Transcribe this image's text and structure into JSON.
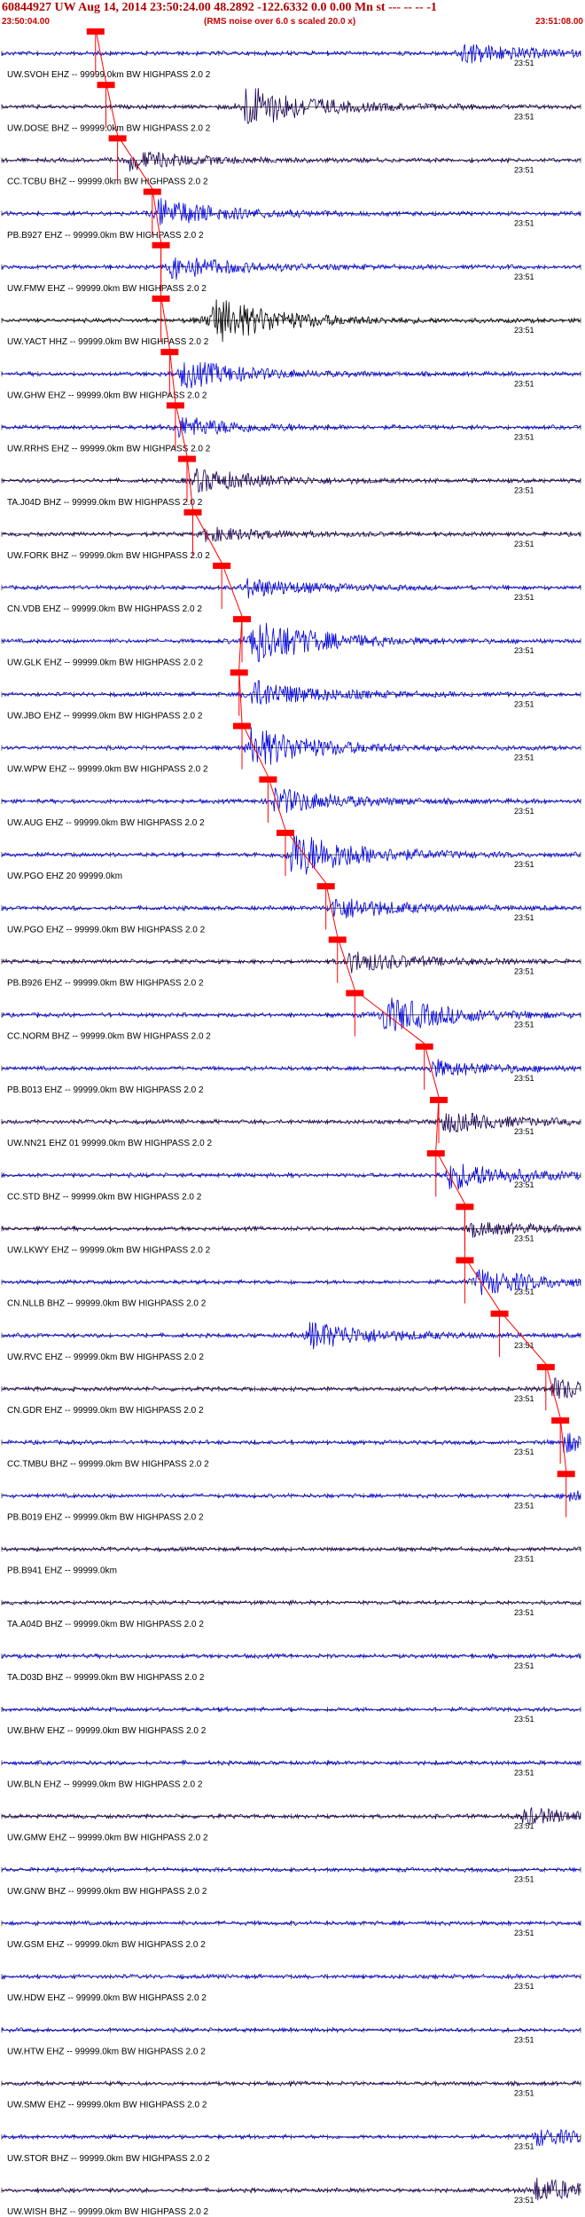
{
  "header": {
    "title": "60844927 UW Aug 14, 2014 23:50:24.00   48.2892 -122.6332  0.0 0.00 Mn st --- -- --  -1",
    "start_time": "23:50:04.00",
    "rms_note": "(RMS noise over 6.0 s scaled 20.0 x)",
    "end_time": "23:51:08.00"
  },
  "colors": {
    "blue": "#0000dd",
    "dark": "#1a0050",
    "black": "#000000",
    "pick": "#ff0000",
    "header_text": "#cc0000"
  },
  "chart_data": {
    "type": "line",
    "title": "60844927 UW Aug 14, 2014 23:50:24.00   48.2892 -122.6332  0.0 0.00 Mn st --- -- --  -1",
    "x_range": [
      "23:50:04.00",
      "23:51:08.00"
    ],
    "time_mark": "23:51",
    "series": [
      {
        "label": "UW.SVOH EHZ -- 99999.0km BW  HIGHPASS  2.0  2",
        "color": "blue",
        "pick": 0.162,
        "burst": 0.79,
        "amp": 0.45
      },
      {
        "label": "UW.DOSE BHZ -- 99999.0km BW  HIGHPASS  2.0  2",
        "color": "dark",
        "pick": 0.18,
        "burst": 0.42,
        "amp": 0.9
      },
      {
        "label": "CC.TCBU BHZ -- 99999.0km BW  HIGHPASS  2.0  2",
        "color": "dark",
        "pick": 0.2,
        "burst": 0.22,
        "amp": 0.4
      },
      {
        "label": "PB.B927 EHZ -- 99999.0km BW  HIGHPASS  2.0  2",
        "color": "blue",
        "pick": 0.26,
        "burst": 0.27,
        "amp": 0.6
      },
      {
        "label": "UW.FMW EHZ -- 99999.0km BW  HIGHPASS  2.0  2",
        "color": "blue",
        "pick": 0.275,
        "burst": 0.29,
        "amp": 0.5
      },
      {
        "label": "UW.YACT HHZ -- 99999.0km BW  HIGHPASS  2.0  2",
        "color": "black",
        "pick": 0.275,
        "burst": 0.36,
        "amp": 1.0
      },
      {
        "label": "UW.GHW EHZ -- 99999.0km BW  HIGHPASS  2.0  2",
        "color": "blue",
        "pick": 0.29,
        "burst": 0.31,
        "amp": 0.6
      },
      {
        "label": "UW.RRHS EHZ -- 99999.0km BW  HIGHPASS  2.0  2",
        "color": "blue",
        "pick": 0.3,
        "burst": 0.3,
        "amp": 0.45
      },
      {
        "label": "TA.J04D BHZ -- 99999.0km BW  HIGHPASS  2.0  2",
        "color": "dark",
        "pick": 0.32,
        "burst": 0.33,
        "amp": 0.5
      },
      {
        "label": "UW.FORK BHZ -- 99999.0km BW  HIGHPASS  2.0  2",
        "color": "dark",
        "pick": 0.33,
        "burst": 0.35,
        "amp": 0.3
      },
      {
        "label": "CN.VDB EHZ -- 99999.0km BW  HIGHPASS  2.0  2",
        "color": "blue",
        "pick": 0.38,
        "burst": 0.42,
        "amp": 0.4
      },
      {
        "label": "UW.GLK EHZ -- 99999.0km BW  HIGHPASS  2.0  2",
        "color": "blue",
        "pick": 0.415,
        "burst": 0.43,
        "amp": 1.0
      },
      {
        "label": "UW.JBO EHZ -- 99999.0km BW  HIGHPASS  2.0  2",
        "color": "blue",
        "pick": 0.41,
        "burst": 0.43,
        "amp": 0.6
      },
      {
        "label": "UW.WPW EHZ -- 99999.0km BW  HIGHPASS  2.0  2",
        "color": "blue",
        "pick": 0.415,
        "burst": 0.43,
        "amp": 0.85
      },
      {
        "label": "UW.AUG EHZ -- 99999.0km BW  HIGHPASS  2.0  2",
        "color": "blue",
        "pick": 0.46,
        "burst": 0.47,
        "amp": 0.55
      },
      {
        "label": "UW.PGO EHZ 20 99999.0km",
        "color": "blue",
        "pick": 0.49,
        "burst": 0.5,
        "amp": 1.0
      },
      {
        "label": "UW.PGO EHZ -- 99999.0km BW  HIGHPASS  2.0  2",
        "color": "blue",
        "pick": 0.56,
        "burst": 0.57,
        "amp": 0.5
      },
      {
        "label": "PB.B926 EHZ -- 99999.0km BW  HIGHPASS  2.0  2",
        "color": "dark",
        "pick": 0.58,
        "burst": 0.6,
        "amp": 0.45
      },
      {
        "label": "CC.NORM BHZ -- 99999.0km BW  HIGHPASS  2.0  2",
        "color": "blue",
        "pick": 0.61,
        "burst": 0.66,
        "amp": 0.8
      },
      {
        "label": "PB.B013 EHZ -- 99999.0km BW  HIGHPASS  2.0  2",
        "color": "blue",
        "pick": 0.73,
        "burst": 0.74,
        "amp": 0.35
      },
      {
        "label": "UW.NN21 EHZ 01 99999.0km BW  HIGHPASS  2.0  2",
        "color": "dark",
        "pick": 0.755,
        "burst": 0.76,
        "amp": 0.45
      },
      {
        "label": "CC.STD BHZ -- 99999.0km BW  HIGHPASS  2.0  2",
        "color": "blue",
        "pick": 0.75,
        "burst": 0.77,
        "amp": 0.6
      },
      {
        "label": "UW.LKWY EHZ -- 99999.0km BW  HIGHPASS  2.0  2",
        "color": "dark",
        "pick": 0.8,
        "burst": 0.81,
        "amp": 0.3
      },
      {
        "label": "CN.NLLB BHZ -- 99999.0km BW  HIGHPASS  2.0  2",
        "color": "blue",
        "pick": 0.8,
        "burst": 0.82,
        "amp": 0.55
      },
      {
        "label": "UW.RVC EHZ -- 99999.0km BW  HIGHPASS  2.0  2",
        "color": "blue",
        "pick": 0.86,
        "burst": 0.53,
        "amp": 0.6
      },
      {
        "label": "CN.GDR EHZ -- 99999.0km BW  HIGHPASS  2.0  2",
        "color": "dark",
        "pick": 0.94,
        "burst": 0.95,
        "amp": 0.45
      },
      {
        "label": "CC.TMBU BHZ -- 99999.0km BW  HIGHPASS  2.0  2",
        "color": "blue",
        "pick": 0.965,
        "burst": 0.97,
        "amp": 0.4
      },
      {
        "label": "PB.B019 EHZ -- 99999.0km BW  HIGHPASS  2.0  2",
        "color": "blue",
        "pick": 0.975,
        "burst": 0.98,
        "amp": 0.3
      },
      {
        "label": "PB.B941 EHZ -- 99999.0km",
        "color": "dark",
        "pick": null,
        "burst": null,
        "amp": 0.25
      },
      {
        "label": "TA.A04D BHZ -- 99999.0km BW  HIGHPASS  2.0  2",
        "color": "dark",
        "pick": null,
        "burst": null,
        "amp": 0.35
      },
      {
        "label": "TA.D03D BHZ -- 99999.0km BW  HIGHPASS  2.0  2",
        "color": "blue",
        "pick": null,
        "burst": null,
        "amp": 0.35
      },
      {
        "label": "UW.BHW EHZ -- 99999.0km BW  HIGHPASS  2.0  2",
        "color": "blue",
        "pick": null,
        "burst": null,
        "amp": 0.3
      },
      {
        "label": "UW.BLN EHZ -- 99999.0km BW  HIGHPASS  2.0  2",
        "color": "blue",
        "pick": null,
        "burst": null,
        "amp": 0.4
      },
      {
        "label": "UW.GMW EHZ -- 99999.0km BW  HIGHPASS  2.0  2",
        "color": "dark",
        "pick": null,
        "burst": 0.9,
        "amp": 0.35
      },
      {
        "label": "UW.GNW BHZ -- 99999.0km BW  HIGHPASS  2.0  2",
        "color": "blue",
        "pick": null,
        "burst": null,
        "amp": 0.3
      },
      {
        "label": "UW.GSM EHZ -- 99999.0km BW  HIGHPASS  2.0  2",
        "color": "blue",
        "pick": null,
        "burst": null,
        "amp": 0.3
      },
      {
        "label": "UW.HDW EHZ -- 99999.0km BW  HIGHPASS  2.0  2",
        "color": "blue",
        "pick": null,
        "burst": null,
        "amp": 0.3
      },
      {
        "label": "UW.HTW EHZ -- 99999.0km BW  HIGHPASS  2.0  2",
        "color": "blue",
        "pick": null,
        "burst": null,
        "amp": 0.3
      },
      {
        "label": "UW.SMW EHZ -- 99999.0km BW  HIGHPASS  2.0  2",
        "color": "dark",
        "pick": null,
        "burst": null,
        "amp": 0.3
      },
      {
        "label": "UW.STOR BHZ -- 99999.0km BW  HIGHPASS  2.0  2",
        "color": "blue",
        "pick": null,
        "burst": 0.92,
        "amp": 0.35
      },
      {
        "label": "UW.WISH BHZ -- 99999.0km BW  HIGHPASS  2.0  2",
        "color": "dark",
        "pick": null,
        "burst": 0.92,
        "amp": 0.5
      }
    ]
  }
}
